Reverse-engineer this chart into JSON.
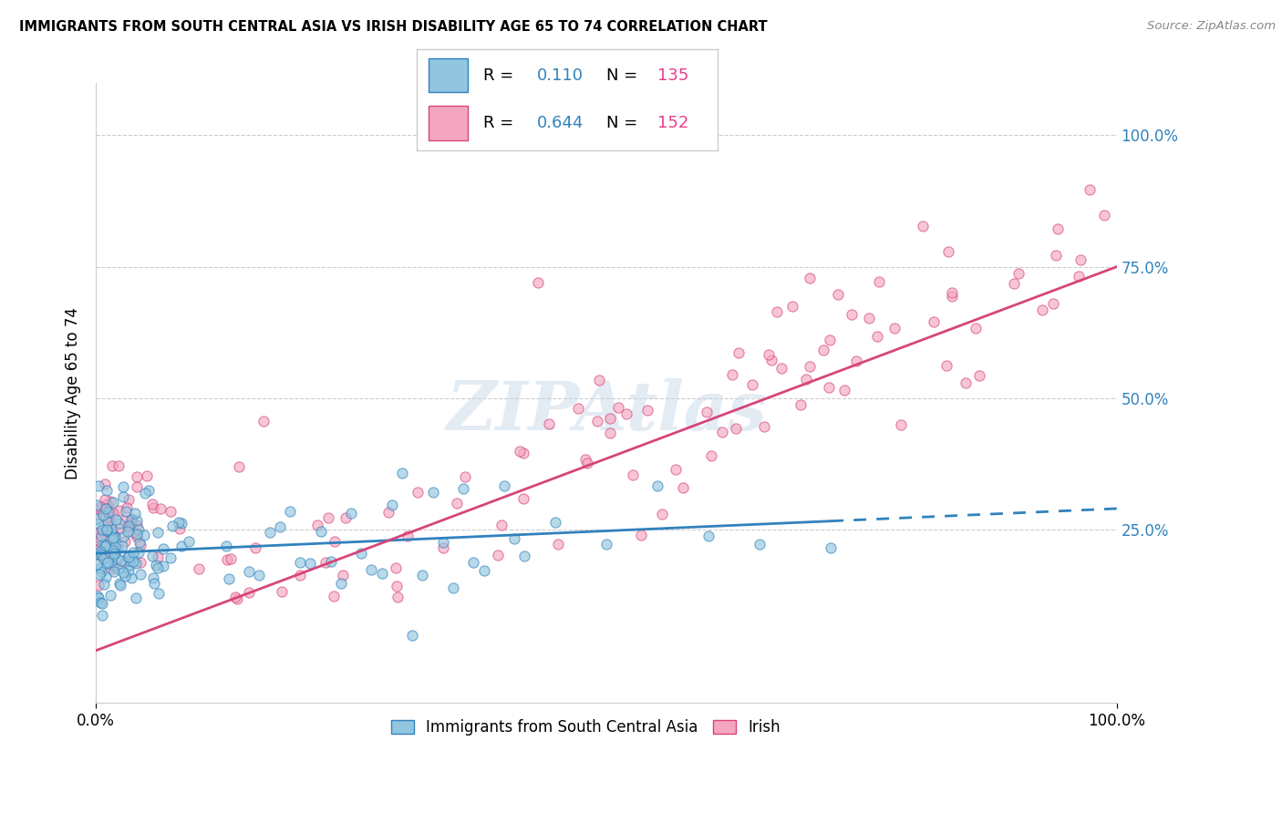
{
  "title": "IMMIGRANTS FROM SOUTH CENTRAL ASIA VS IRISH DISABILITY AGE 65 TO 74 CORRELATION CHART",
  "source": "Source: ZipAtlas.com",
  "ylabel": "Disability Age 65 to 74",
  "xlim": [
    0,
    1
  ],
  "ylim": [
    -0.08,
    1.1
  ],
  "y_tick_labels": [
    "25.0%",
    "50.0%",
    "75.0%",
    "100.0%"
  ],
  "y_tick_positions": [
    0.25,
    0.5,
    0.75,
    1.0
  ],
  "legend_label1": "Immigrants from South Central Asia",
  "legend_label2": "Irish",
  "R1": "0.110",
  "N1": "135",
  "R2": "0.644",
  "N2": "152",
  "color_blue": "#92c5de",
  "color_pink": "#f4a6c0",
  "line_color_blue": "#3182bd",
  "line_color_pink": "#d6457a",
  "blue_line_solid_end": 0.72,
  "blue_line_intercept": 0.205,
  "blue_line_slope": 0.085,
  "pink_line_intercept": 0.02,
  "pink_line_slope": 0.73
}
